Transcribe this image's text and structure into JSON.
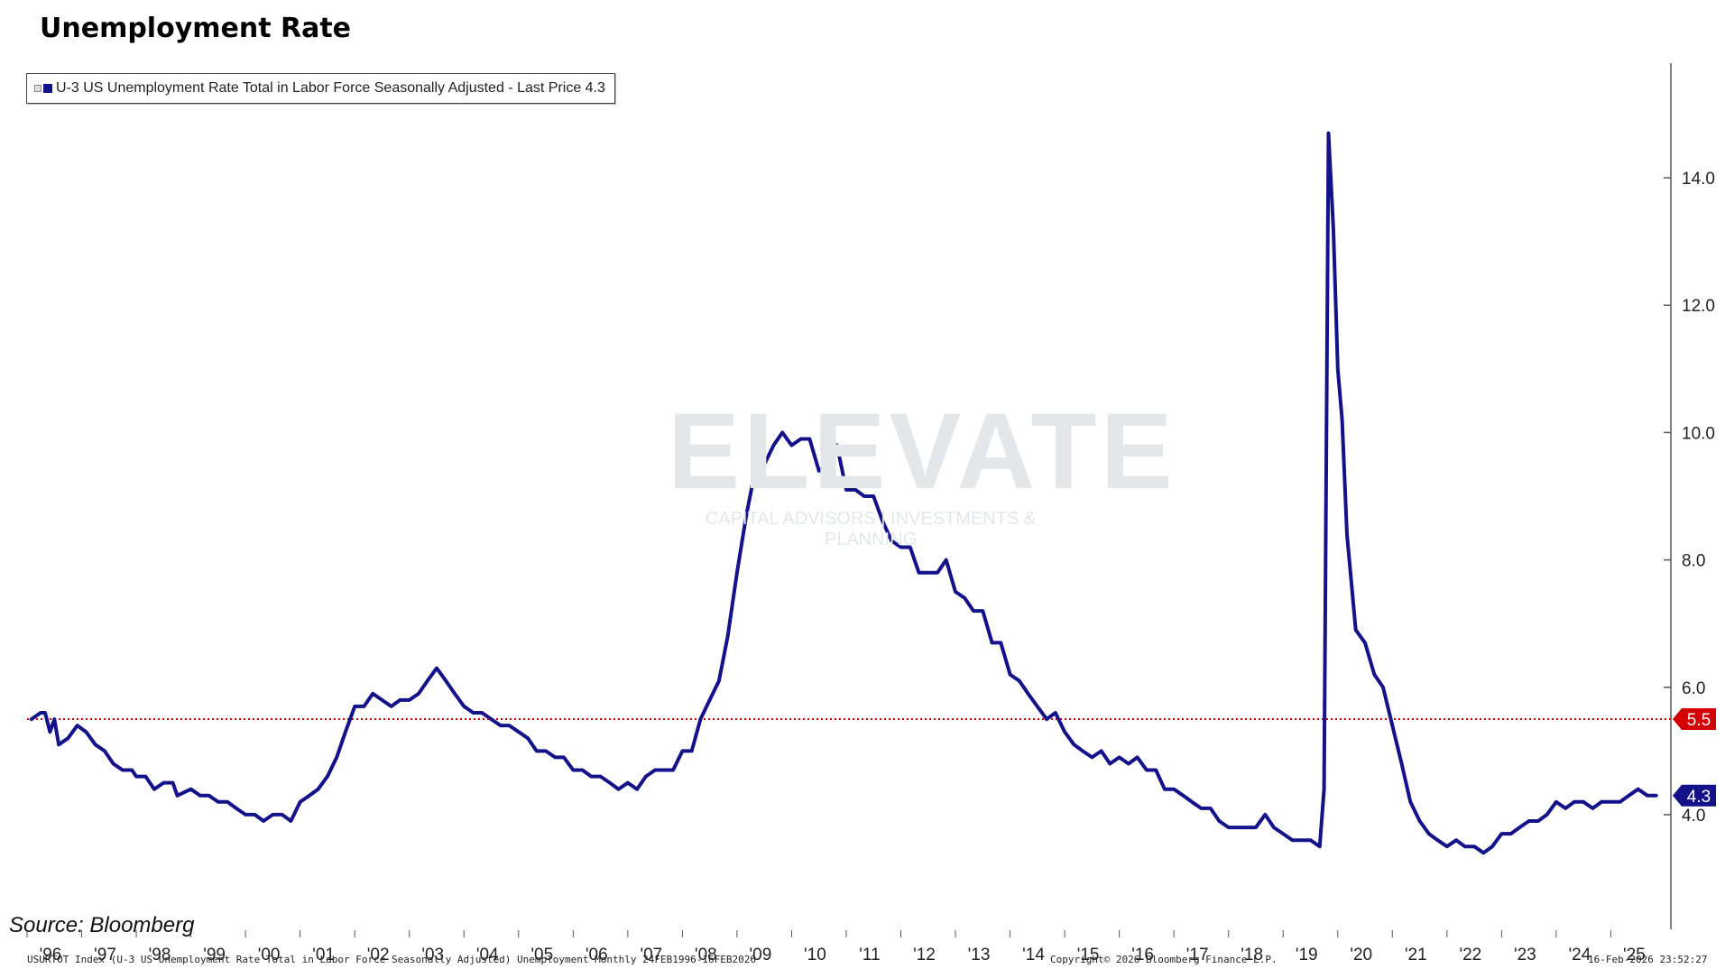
{
  "title": "Unemployment Rate",
  "legend": {
    "label": "U-3 US Unemployment Rate Total in Labor Force Seasonally Adjusted - Last Price 4.3"
  },
  "source": "Source: Bloomberg",
  "footer": {
    "left": "USURTOT Index (U-3 US Unemployment Rate Total in Labor Force Seasonally Adjusted) Unemployment Monthly 24FEB1996-16FEB2026",
    "center": "Copyright© 2026 Bloomberg Finance L.P.",
    "right": "16-Feb-2026 23:52:27"
  },
  "watermark": {
    "word": "ELEVATE",
    "tagline": "CAPITAL ADVISORS | INVESTMENTS & PLANNING"
  },
  "colors": {
    "series": "#14128a",
    "reference_line": "#d40000",
    "last_price_tag": "#14128a",
    "reference_tag": "#d40000"
  },
  "chart_data": {
    "type": "line",
    "title": "Unemployment Rate",
    "xlabel": "",
    "ylabel": "",
    "xlim": [
      1996.0,
      2026.1
    ],
    "ylim": [
      2.2,
      15.8
    ],
    "y_ticks": [
      4.0,
      6.0,
      8.0,
      10.0,
      12.0,
      14.0
    ],
    "y_tick_labels": [
      "4.0",
      "6.0",
      "8.0",
      "10.0",
      "12.0",
      "14.0"
    ],
    "x_tick_labels": [
      "'96",
      "'97",
      "'98",
      "'99",
      "'00",
      "'01",
      "'02",
      "'03",
      "'04",
      "'05",
      "'06",
      "'07",
      "'08",
      "'09",
      "'10",
      "'11",
      "'12",
      "'13",
      "'14",
      "'15",
      "'16",
      "'17",
      "'18",
      "'19",
      "'20",
      "'21",
      "'22",
      "'23",
      "'24",
      "'25"
    ],
    "grid": false,
    "legend_position": "top-left",
    "reference_line": {
      "value": 5.5,
      "label": "5.5",
      "style": "dotted"
    },
    "last_price": {
      "value": 4.3,
      "label": "4.3"
    },
    "series": [
      {
        "name": "U-3 US Unemployment Rate Total in Labor Force Seasonally Adjusted",
        "points": [
          [
            1996.08,
            5.5
          ],
          [
            1996.25,
            5.6
          ],
          [
            1996.33,
            5.6
          ],
          [
            1996.42,
            5.3
          ],
          [
            1996.5,
            5.5
          ],
          [
            1996.58,
            5.1
          ],
          [
            1996.75,
            5.2
          ],
          [
            1996.92,
            5.4
          ],
          [
            1997.08,
            5.3
          ],
          [
            1997.25,
            5.1
          ],
          [
            1997.42,
            5.0
          ],
          [
            1997.58,
            4.8
          ],
          [
            1997.75,
            4.7
          ],
          [
            1997.92,
            4.7
          ],
          [
            1998.0,
            4.6
          ],
          [
            1998.17,
            4.6
          ],
          [
            1998.33,
            4.4
          ],
          [
            1998.5,
            4.5
          ],
          [
            1998.67,
            4.5
          ],
          [
            1998.75,
            4.3
          ],
          [
            1999.0,
            4.4
          ],
          [
            1999.17,
            4.3
          ],
          [
            1999.33,
            4.3
          ],
          [
            1999.5,
            4.2
          ],
          [
            1999.67,
            4.2
          ],
          [
            1999.83,
            4.1
          ],
          [
            2000.0,
            4.0
          ],
          [
            2000.17,
            4.0
          ],
          [
            2000.33,
            3.9
          ],
          [
            2000.5,
            4.0
          ],
          [
            2000.67,
            4.0
          ],
          [
            2000.83,
            3.9
          ],
          [
            2001.0,
            4.2
          ],
          [
            2001.17,
            4.3
          ],
          [
            2001.33,
            4.4
          ],
          [
            2001.5,
            4.6
          ],
          [
            2001.67,
            4.9
          ],
          [
            2001.83,
            5.3
          ],
          [
            2002.0,
            5.7
          ],
          [
            2002.17,
            5.7
          ],
          [
            2002.33,
            5.9
          ],
          [
            2002.5,
            5.8
          ],
          [
            2002.67,
            5.7
          ],
          [
            2002.83,
            5.8
          ],
          [
            2003.0,
            5.8
          ],
          [
            2003.17,
            5.9
          ],
          [
            2003.33,
            6.1
          ],
          [
            2003.5,
            6.3
          ],
          [
            2003.67,
            6.1
          ],
          [
            2003.83,
            5.9
          ],
          [
            2004.0,
            5.7
          ],
          [
            2004.17,
            5.6
          ],
          [
            2004.33,
            5.6
          ],
          [
            2004.5,
            5.5
          ],
          [
            2004.67,
            5.4
          ],
          [
            2004.83,
            5.4
          ],
          [
            2005.0,
            5.3
          ],
          [
            2005.17,
            5.2
          ],
          [
            2005.33,
            5.0
          ],
          [
            2005.5,
            5.0
          ],
          [
            2005.67,
            4.9
          ],
          [
            2005.83,
            4.9
          ],
          [
            2006.0,
            4.7
          ],
          [
            2006.17,
            4.7
          ],
          [
            2006.33,
            4.6
          ],
          [
            2006.5,
            4.6
          ],
          [
            2006.67,
            4.5
          ],
          [
            2006.83,
            4.4
          ],
          [
            2007.0,
            4.5
          ],
          [
            2007.17,
            4.4
          ],
          [
            2007.33,
            4.6
          ],
          [
            2007.5,
            4.7
          ],
          [
            2007.67,
            4.7
          ],
          [
            2007.83,
            4.7
          ],
          [
            2008.0,
            5.0
          ],
          [
            2008.17,
            5.0
          ],
          [
            2008.33,
            5.5
          ],
          [
            2008.5,
            5.8
          ],
          [
            2008.67,
            6.1
          ],
          [
            2008.83,
            6.8
          ],
          [
            2009.0,
            7.8
          ],
          [
            2009.17,
            8.7
          ],
          [
            2009.33,
            9.4
          ],
          [
            2009.5,
            9.5
          ],
          [
            2009.67,
            9.8
          ],
          [
            2009.83,
            10.0
          ],
          [
            2010.0,
            9.8
          ],
          [
            2010.17,
            9.9
          ],
          [
            2010.33,
            9.9
          ],
          [
            2010.5,
            9.4
          ],
          [
            2010.67,
            9.5
          ],
          [
            2010.83,
            9.8
          ],
          [
            2011.0,
            9.1
          ],
          [
            2011.17,
            9.1
          ],
          [
            2011.33,
            9.0
          ],
          [
            2011.5,
            9.0
          ],
          [
            2011.67,
            8.6
          ],
          [
            2011.83,
            8.3
          ],
          [
            2012.0,
            8.2
          ],
          [
            2012.17,
            8.2
          ],
          [
            2012.33,
            7.8
          ],
          [
            2012.5,
            7.8
          ],
          [
            2012.67,
            7.8
          ],
          [
            2012.83,
            8.0
          ],
          [
            2013.0,
            7.5
          ],
          [
            2013.17,
            7.4
          ],
          [
            2013.33,
            7.2
          ],
          [
            2013.5,
            7.2
          ],
          [
            2013.67,
            6.7
          ],
          [
            2013.83,
            6.7
          ],
          [
            2014.0,
            6.2
          ],
          [
            2014.17,
            6.1
          ],
          [
            2014.33,
            5.9
          ],
          [
            2014.5,
            5.7
          ],
          [
            2014.67,
            5.5
          ],
          [
            2014.83,
            5.6
          ],
          [
            2015.0,
            5.3
          ],
          [
            2015.17,
            5.1
          ],
          [
            2015.33,
            5.0
          ],
          [
            2015.5,
            4.9
          ],
          [
            2015.67,
            5.0
          ],
          [
            2015.83,
            4.8
          ],
          [
            2016.0,
            4.9
          ],
          [
            2016.17,
            4.8
          ],
          [
            2016.33,
            4.9
          ],
          [
            2016.5,
            4.7
          ],
          [
            2016.67,
            4.7
          ],
          [
            2016.83,
            4.4
          ],
          [
            2017.0,
            4.4
          ],
          [
            2017.17,
            4.3
          ],
          [
            2017.33,
            4.2
          ],
          [
            2017.5,
            4.1
          ],
          [
            2017.67,
            4.1
          ],
          [
            2017.83,
            3.9
          ],
          [
            2018.0,
            3.8
          ],
          [
            2018.17,
            3.8
          ],
          [
            2018.33,
            3.8
          ],
          [
            2018.5,
            3.8
          ],
          [
            2018.67,
            4.0
          ],
          [
            2018.83,
            3.8
          ],
          [
            2019.0,
            3.7
          ],
          [
            2019.17,
            3.6
          ],
          [
            2019.33,
            3.6
          ],
          [
            2019.5,
            3.6
          ],
          [
            2019.67,
            3.5
          ],
          [
            2019.75,
            4.4
          ],
          [
            2019.83,
            14.7
          ],
          [
            2019.92,
            13.2
          ],
          [
            2020.0,
            11.0
          ],
          [
            2020.08,
            10.2
          ],
          [
            2020.17,
            8.4
          ],
          [
            2020.33,
            6.9
          ],
          [
            2020.5,
            6.7
          ],
          [
            2020.67,
            6.2
          ],
          [
            2020.83,
            6.0
          ],
          [
            2021.0,
            5.4
          ],
          [
            2021.17,
            4.8
          ],
          [
            2021.33,
            4.2
          ],
          [
            2021.5,
            3.9
          ],
          [
            2021.67,
            3.7
          ],
          [
            2021.83,
            3.6
          ],
          [
            2022.0,
            3.5
          ],
          [
            2022.17,
            3.6
          ],
          [
            2022.33,
            3.5
          ],
          [
            2022.5,
            3.5
          ],
          [
            2022.67,
            3.4
          ],
          [
            2022.83,
            3.5
          ],
          [
            2023.0,
            3.7
          ],
          [
            2023.17,
            3.7
          ],
          [
            2023.33,
            3.8
          ],
          [
            2023.5,
            3.9
          ],
          [
            2023.67,
            3.9
          ],
          [
            2023.83,
            4.0
          ],
          [
            2024.0,
            4.2
          ],
          [
            2024.17,
            4.1
          ],
          [
            2024.33,
            4.2
          ],
          [
            2024.5,
            4.2
          ],
          [
            2024.67,
            4.1
          ],
          [
            2024.83,
            4.2
          ],
          [
            2025.0,
            4.2
          ],
          [
            2025.17,
            4.2
          ],
          [
            2025.33,
            4.3
          ],
          [
            2025.5,
            4.4
          ],
          [
            2025.67,
            4.3
          ],
          [
            2025.83,
            4.3
          ]
        ]
      }
    ]
  }
}
